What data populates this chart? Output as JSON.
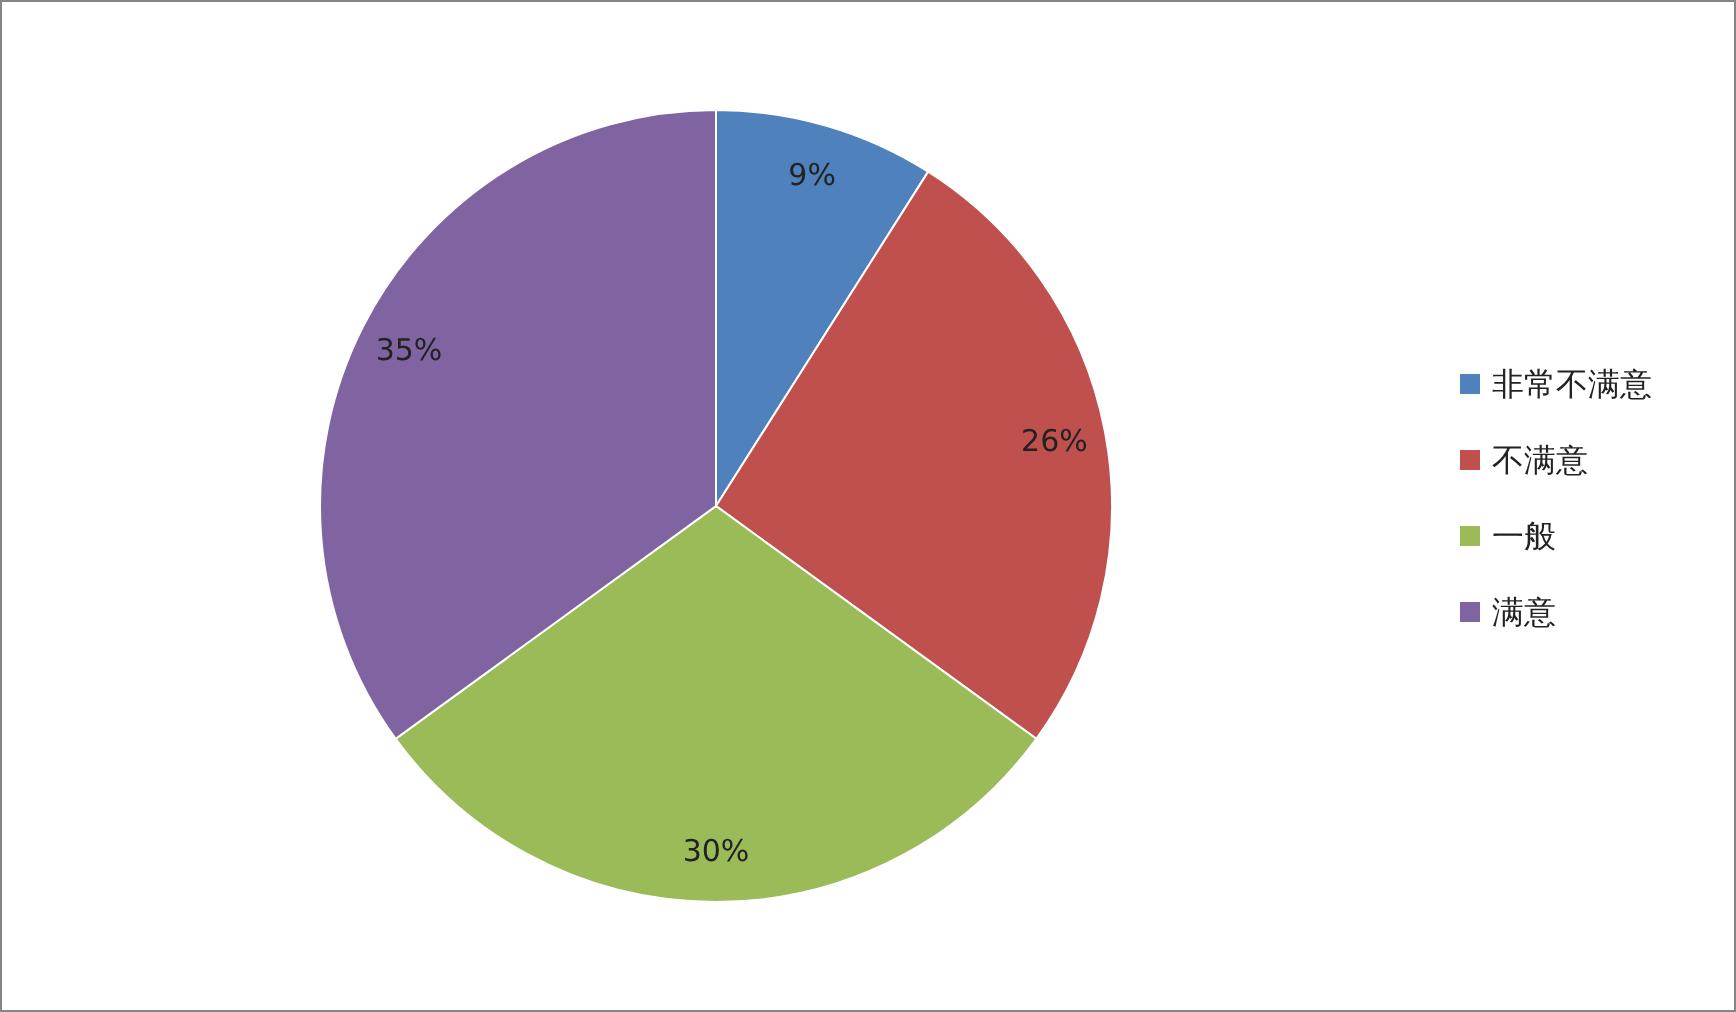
{
  "chart_data": {
    "type": "pie",
    "categories": [
      "非常不满意",
      "不满意",
      "一般",
      "满意"
    ],
    "values": [
      9,
      26,
      30,
      35
    ],
    "colors": [
      "#4f81bd",
      "#c0504d",
      "#9bbb59",
      "#8064a2"
    ],
    "value_labels": [
      "9%",
      "26%",
      "30%",
      "35%"
    ],
    "legend": "right"
  }
}
